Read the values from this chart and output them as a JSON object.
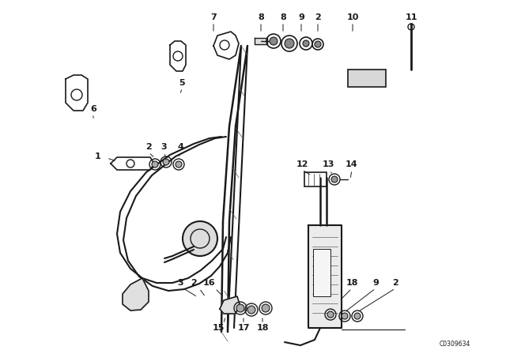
{
  "bg_color": "#ffffff",
  "line_color": "#1a1a1a",
  "catalog_number": "C0309634",
  "fig_width": 6.4,
  "fig_height": 4.48,
  "dpi": 100
}
